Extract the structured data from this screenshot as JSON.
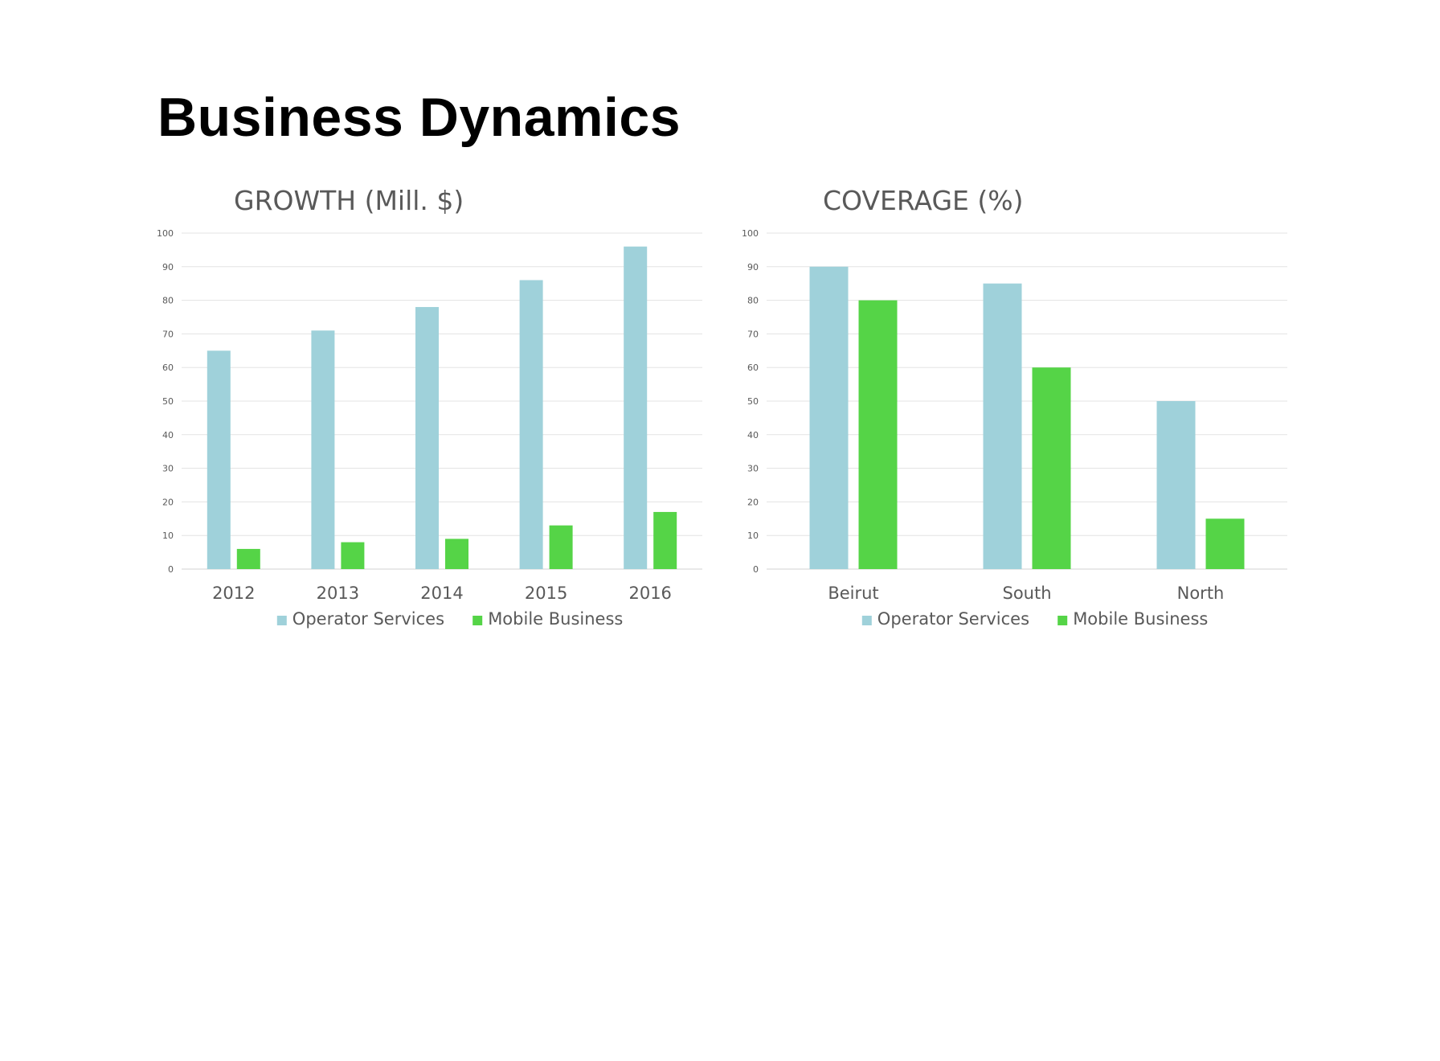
{
  "page": {
    "title": "Business Dynamics"
  },
  "colors": {
    "operator_services": "#9fd1da",
    "mobile_business": "#55d447"
  },
  "chart_data": [
    {
      "id": "growth",
      "type": "bar",
      "title": "GROWTH (Mill. $)",
      "xlabel": "",
      "ylabel": "",
      "categories": [
        "2012",
        "2013",
        "2014",
        "2015",
        "2016"
      ],
      "series": [
        {
          "name": "Operator Services",
          "values": [
            65,
            71,
            78,
            86,
            96
          ],
          "color": "#9fd1da"
        },
        {
          "name": "Mobile Business",
          "values": [
            6,
            8,
            9,
            13,
            17
          ],
          "color": "#55d447"
        }
      ],
      "ylim": [
        0,
        100
      ],
      "yticks": [
        0,
        10,
        20,
        30,
        40,
        50,
        60,
        70,
        80,
        90,
        100
      ],
      "grid": true,
      "legend": "bottom"
    },
    {
      "id": "coverage",
      "type": "bar",
      "title": "COVERAGE (%)",
      "xlabel": "",
      "ylabel": "",
      "categories": [
        "Beirut",
        "South",
        "North"
      ],
      "series": [
        {
          "name": "Operator Services",
          "values": [
            90,
            85,
            50
          ],
          "color": "#9fd1da"
        },
        {
          "name": "Mobile Business",
          "values": [
            80,
            60,
            15
          ],
          "color": "#55d447"
        }
      ],
      "ylim": [
        0,
        100
      ],
      "yticks": [
        0,
        10,
        20,
        30,
        40,
        50,
        60,
        70,
        80,
        90,
        100
      ],
      "grid": true,
      "legend": "bottom"
    }
  ]
}
